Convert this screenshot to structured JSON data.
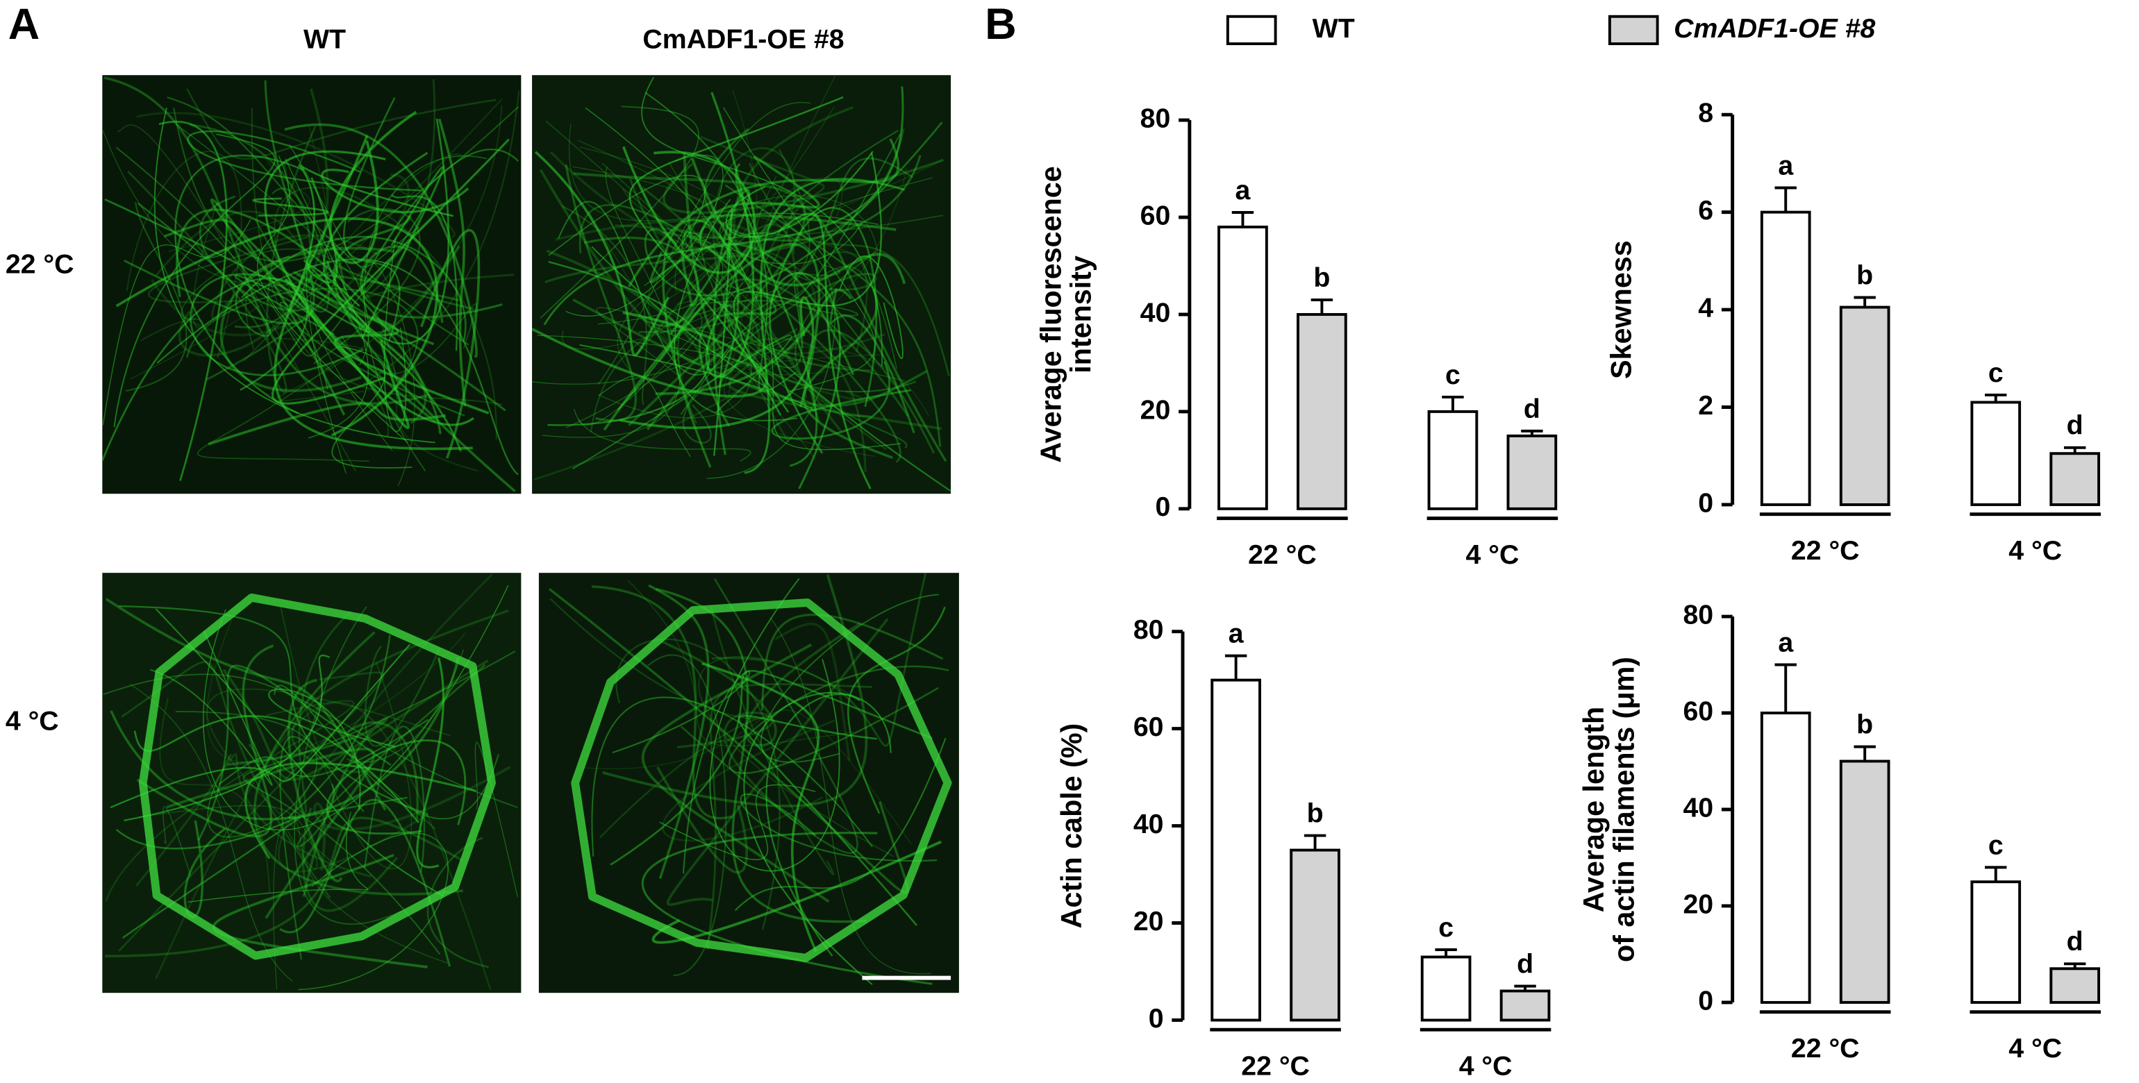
{
  "panel_labels": [
    "A",
    "B"
  ],
  "panel_a": {
    "columns": [
      "WT",
      "CmADF1-OE #8"
    ],
    "rows": [
      "22 °C",
      "4 °C"
    ]
  },
  "chart_data": [
    {
      "type": "bar",
      "ylabel": [
        "Average fluorescence",
        "intensity"
      ],
      "categories": [
        "22 °C",
        "4 °C"
      ],
      "ylim": [
        0,
        80
      ],
      "yticks": [
        0,
        20,
        40,
        60,
        80
      ],
      "series": [
        {
          "name": "WT",
          "color": "#ffffff",
          "values": [
            58,
            20
          ],
          "errors": [
            3,
            3
          ],
          "letters": [
            "a",
            "c"
          ]
        },
        {
          "name": "CmADF1-OE #8",
          "color": "#d3d3d3",
          "values": [
            40,
            15
          ],
          "errors": [
            3,
            1
          ],
          "letters": [
            "b",
            "d"
          ]
        }
      ]
    },
    {
      "type": "bar",
      "ylabel": [
        "Skewness"
      ],
      "categories": [
        "22 °C",
        "4 °C"
      ],
      "ylim": [
        0,
        8
      ],
      "yticks": [
        0,
        2,
        4,
        6,
        8
      ],
      "series": [
        {
          "name": "WT",
          "color": "#ffffff",
          "values": [
            6.0,
            2.1
          ],
          "errors": [
            0.5,
            0.15
          ],
          "letters": [
            "a",
            "c"
          ]
        },
        {
          "name": "CmADF1-OE #8",
          "color": "#d3d3d3",
          "values": [
            4.05,
            1.05
          ],
          "errors": [
            0.2,
            0.12
          ],
          "letters": [
            "b",
            "d"
          ]
        }
      ]
    },
    {
      "type": "bar",
      "ylabel": [
        "Actin cable (%)"
      ],
      "categories": [
        "22 °C",
        "4 °C"
      ],
      "ylim": [
        0,
        80
      ],
      "yticks": [
        0,
        20,
        40,
        60,
        80
      ],
      "series": [
        {
          "name": "WT",
          "color": "#ffffff",
          "values": [
            70,
            13
          ],
          "errors": [
            5,
            1.5
          ],
          "letters": [
            "a",
            "c"
          ]
        },
        {
          "name": "CmADF1-OE #8",
          "color": "#d3d3d3",
          "values": [
            35,
            6
          ],
          "errors": [
            3,
            1
          ],
          "letters": [
            "b",
            "d"
          ]
        }
      ]
    },
    {
      "type": "bar",
      "ylabel": [
        "Average length",
        "of actin filaments (μm)"
      ],
      "categories": [
        "22 °C",
        "4 °C"
      ],
      "ylim": [
        0,
        80
      ],
      "yticks": [
        0,
        20,
        40,
        60,
        80
      ],
      "series": [
        {
          "name": "WT",
          "color": "#ffffff",
          "values": [
            60,
            25
          ],
          "errors": [
            10,
            3
          ],
          "letters": [
            "a",
            "c"
          ]
        },
        {
          "name": "CmADF1-OE #8",
          "color": "#d3d3d3",
          "values": [
            50,
            7
          ],
          "errors": [
            3,
            1
          ],
          "letters": [
            "b",
            "d"
          ]
        }
      ]
    }
  ]
}
